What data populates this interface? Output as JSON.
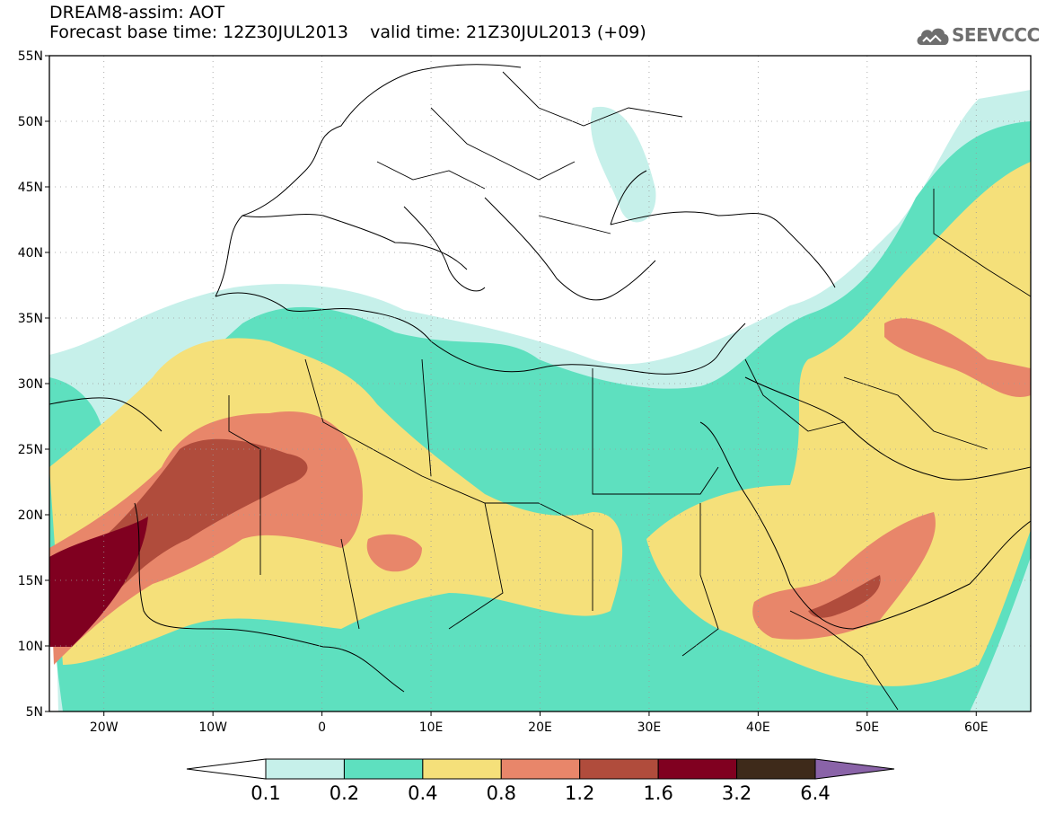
{
  "header": {
    "line1": "DREAM8-assim: AOT",
    "line2": "Forecast base time: 12Z30JUL2013    valid time: 21Z30JUL2013 (+09)"
  },
  "logo": {
    "text": "SEEVCCC",
    "icon": "cloud-icon"
  },
  "map": {
    "lat_labels": [
      "55N",
      "50N",
      "45N",
      "40N",
      "35N",
      "30N",
      "25N",
      "20N",
      "15N",
      "10N",
      "5N"
    ],
    "lon_labels": [
      "20W",
      "10W",
      "0",
      "10E",
      "20E",
      "30E",
      "40E",
      "50E",
      "60E"
    ],
    "lat_range": [
      5,
      55
    ],
    "lon_range": [
      -25,
      65
    ],
    "grid": "dotted"
  },
  "legend": {
    "labels": [
      "0.1",
      "0.2",
      "0.4",
      "0.8",
      "1.2",
      "1.6",
      "3.2",
      "6.4"
    ],
    "colors": [
      "#c6f0ea",
      "#5ee0bf",
      "#f5e07a",
      "#e8866a",
      "#b04c3c",
      "#800020",
      "#3e2a1a",
      "#8a63a8"
    ]
  },
  "colors": {
    "c1": "#c6f0ea",
    "c2": "#5ee0bf",
    "c3": "#f5e07a",
    "c4": "#e8866a",
    "c5": "#b04c3c",
    "c6": "#800020",
    "border": "#000000"
  }
}
